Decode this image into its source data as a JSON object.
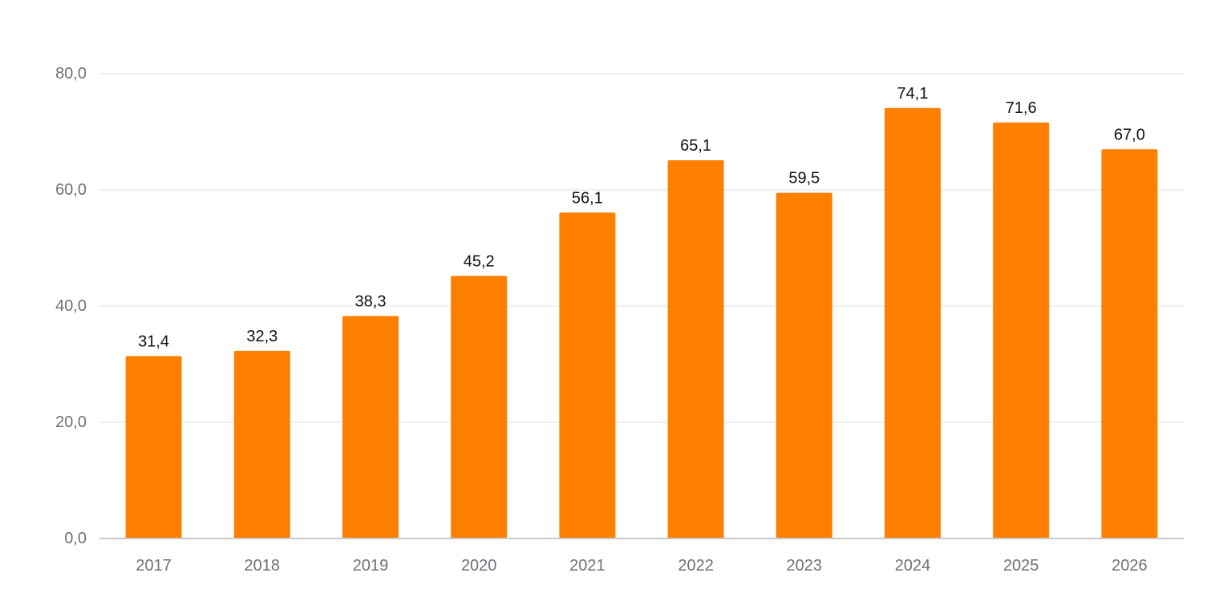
{
  "chart_data": {
    "type": "bar",
    "title": "",
    "xlabel": "",
    "ylabel": "",
    "categories": [
      "2017",
      "2018",
      "2019",
      "2020",
      "2021",
      "2022",
      "2023",
      "2024",
      "2025",
      "2026"
    ],
    "values": [
      31.4,
      32.3,
      38.3,
      45.2,
      56.1,
      65.1,
      59.5,
      74.1,
      71.6,
      67.0
    ],
    "value_labels": [
      "31,4",
      "32,3",
      "38,3",
      "45,2",
      "56,1",
      "65,1",
      "59,5",
      "74,1",
      "71,6",
      "67,0"
    ],
    "ylim": [
      0,
      80
    ],
    "yticks": [
      0,
      20,
      40,
      60,
      80
    ],
    "ytick_labels": [
      "0,0",
      "20,0",
      "40,0",
      "60,0",
      "80,0"
    ],
    "grid": true,
    "legend": "none",
    "colors": {
      "bar": "#ff7f00"
    }
  }
}
